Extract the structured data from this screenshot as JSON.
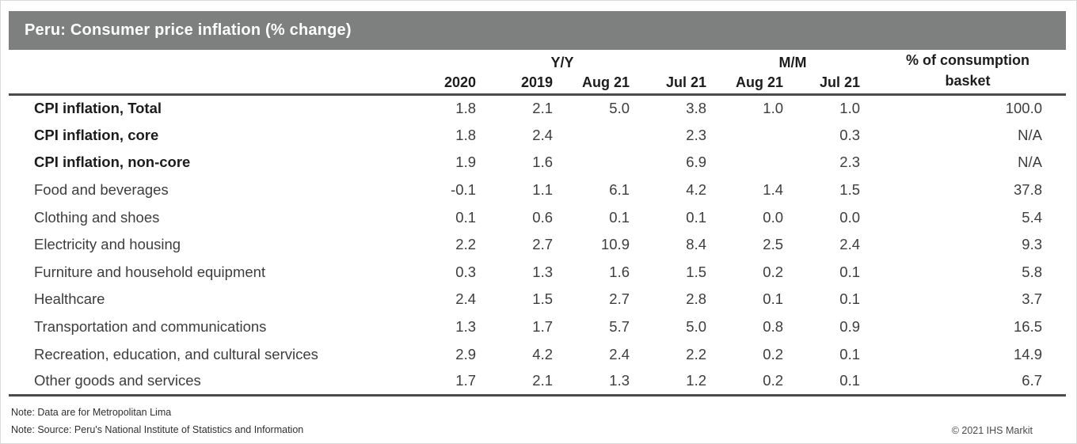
{
  "title": "Peru: Consumer price inflation (% change)",
  "colors": {
    "title_bar_background": "#7e7f7f",
    "title_text": "#ffffff",
    "rule_lines": "#4b4b4b"
  },
  "table": {
    "group_headers": [
      {
        "label": "Y/Y",
        "span": 4
      },
      {
        "label": "M/M",
        "span": 2
      }
    ],
    "basket_header_line1": "% of consumption",
    "basket_header_line2": "basket",
    "col_headers": [
      "2020",
      "2019",
      "Aug 21",
      "Jul 21",
      "Aug 21",
      "Jul 21"
    ],
    "rows": [
      {
        "label": "CPI inflation, Total",
        "bold": true,
        "values": [
          "1.8",
          "2.1",
          "5.0",
          "3.8",
          "1.0",
          "1.0",
          "100.0"
        ]
      },
      {
        "label": "CPI inflation, core",
        "bold": true,
        "values": [
          "1.8",
          "2.4",
          "",
          "2.3",
          "",
          "0.3",
          "N/A"
        ]
      },
      {
        "label": "CPI inflation, non-core",
        "bold": true,
        "values": [
          "1.9",
          "1.6",
          "",
          "6.9",
          "",
          "2.3",
          "N/A"
        ]
      },
      {
        "label": "Food and beverages",
        "bold": false,
        "values": [
          "-0.1",
          "1.1",
          "6.1",
          "4.2",
          "1.4",
          "1.5",
          "37.8"
        ]
      },
      {
        "label": "Clothing and shoes",
        "bold": false,
        "values": [
          "0.1",
          "0.6",
          "0.1",
          "0.1",
          "0.0",
          "0.0",
          "5.4"
        ]
      },
      {
        "label": "Electricity and housing",
        "bold": false,
        "values": [
          "2.2",
          "2.7",
          "10.9",
          "8.4",
          "2.5",
          "2.4",
          "9.3"
        ]
      },
      {
        "label": "Furniture and household equipment",
        "bold": false,
        "values": [
          "0.3",
          "1.3",
          "1.6",
          "1.5",
          "0.2",
          "0.1",
          "5.8"
        ]
      },
      {
        "label": "Healthcare",
        "bold": false,
        "values": [
          "2.4",
          "1.5",
          "2.7",
          "2.8",
          "0.1",
          "0.1",
          "3.7"
        ]
      },
      {
        "label": "Transportation and communications",
        "bold": false,
        "values": [
          "1.3",
          "1.7",
          "5.7",
          "5.0",
          "0.8",
          "0.9",
          "16.5"
        ]
      },
      {
        "label": "Recreation, education, and cultural services",
        "bold": false,
        "values": [
          "2.9",
          "4.2",
          "2.4",
          "2.2",
          "0.2",
          "0.1",
          "14.9"
        ]
      },
      {
        "label": "Other goods and services",
        "bold": false,
        "values": [
          "1.7",
          "2.1",
          "1.3",
          "1.2",
          "0.2",
          "0.1",
          "6.7"
        ]
      }
    ]
  },
  "footer": {
    "note1": "Note: Data are for Metropolitan Lima",
    "note2": "Note: Source: Peru's National Institute of Statistics and Information",
    "copyright": "© 2021 IHS Markit"
  }
}
